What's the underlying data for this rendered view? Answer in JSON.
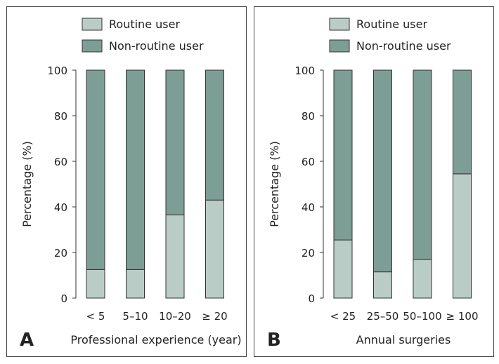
{
  "colors": {
    "routine": "#b9cdc6",
    "non_routine": "#7d9e95",
    "stroke": "#333333"
  },
  "chart_data": [
    {
      "type": "bar",
      "stacked": true,
      "panel_letter": "A",
      "xlabel": "Professional experience (year)",
      "ylabel": "Percentage (%)",
      "ylim": [
        0,
        100
      ],
      "yticks": [
        "0",
        "20",
        "40",
        "60",
        "80",
        "100"
      ],
      "categories": [
        "< 5",
        "5–10",
        "10–20",
        "≥ 20"
      ],
      "legend_position": "top",
      "series": [
        {
          "name": "Routine user",
          "values": [
            12.5,
            12.5,
            36.5,
            43
          ]
        },
        {
          "name": "Non-routine user",
          "values": [
            87.5,
            87.5,
            63.5,
            57
          ]
        }
      ]
    },
    {
      "type": "bar",
      "stacked": true,
      "panel_letter": "B",
      "xlabel": "Annual surgeries",
      "ylabel": "Percentage (%)",
      "ylim": [
        0,
        100
      ],
      "yticks": [
        "0",
        "20",
        "40",
        "60",
        "80",
        "100"
      ],
      "categories": [
        "< 25",
        "25–50",
        "50–100",
        "≥ 100"
      ],
      "legend_position": "top",
      "series": [
        {
          "name": "Routine user",
          "values": [
            25.5,
            11.5,
            17,
            54.5
          ]
        },
        {
          "name": "Non-routine user",
          "values": [
            74.5,
            88.5,
            83,
            45.5
          ]
        }
      ]
    }
  ]
}
